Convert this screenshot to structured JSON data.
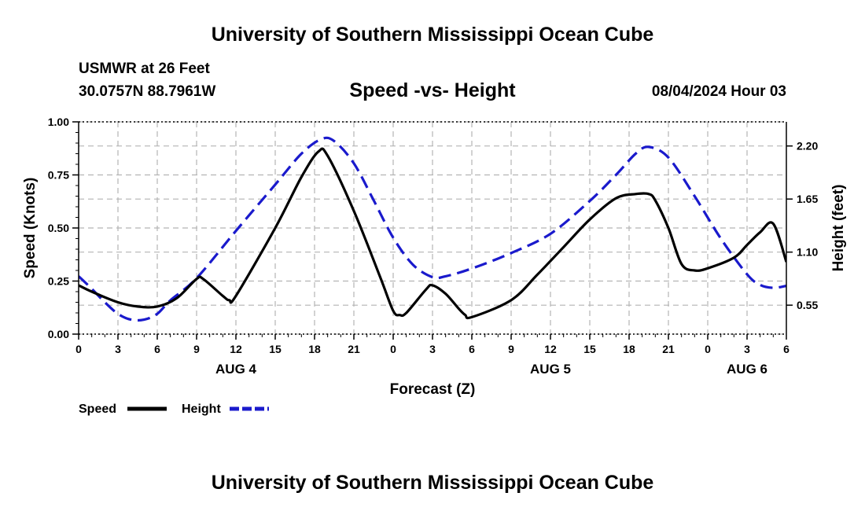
{
  "header": {
    "title": "University of Southern Mississippi Ocean Cube",
    "station": "USMWR at 26 Feet",
    "coords": "30.0757N  88.7961W",
    "subtitle": "Speed -vs- Height",
    "datetime": "08/04/2024 Hour 03"
  },
  "footer": {
    "title": "University of Southern Mississippi Ocean Cube"
  },
  "chart_data": {
    "type": "line",
    "title": "Speed -vs- Height",
    "xlabel": "Forecast (Z)",
    "ylabel_left": "Speed (Knots)",
    "ylabel_right": "Height (feet)",
    "x_range": [
      0,
      54
    ],
    "x_ticks": [
      0,
      3,
      6,
      9,
      12,
      15,
      18,
      21,
      24,
      27,
      30,
      33,
      36,
      39,
      42,
      45,
      48,
      51,
      54
    ],
    "x_tick_labels": [
      "0",
      "3",
      "6",
      "9",
      "12",
      "15",
      "18",
      "21",
      "0",
      "3",
      "6",
      "9",
      "12",
      "15",
      "18",
      "21",
      "0",
      "3",
      "6"
    ],
    "day_labels": [
      {
        "label": "AUG 4",
        "x": 12
      },
      {
        "label": "AUG 5",
        "x": 36
      },
      {
        "label": "AUG 6",
        "x": 51
      }
    ],
    "y_left": {
      "range": [
        0,
        1
      ],
      "ticks": [
        0,
        0.25,
        0.5,
        0.75,
        1
      ],
      "tick_labels": [
        "0.00",
        "0.25",
        "0.50",
        "0.75",
        "1.00"
      ]
    },
    "y_right": {
      "range": [
        0.25,
        2.45
      ],
      "ticks": [
        0.55,
        1.1,
        1.65,
        2.2
      ],
      "tick_labels": [
        "0.55",
        "1.10",
        "1.65",
        "2.20"
      ]
    },
    "grid": true,
    "series": [
      {
        "name": "Speed",
        "axis": "left",
        "color": "#000000",
        "dash": "solid",
        "x": [
          0,
          1,
          3,
          4.5,
          6,
          7.5,
          9,
          9.5,
          11,
          11.5,
          12,
          15,
          17,
          18.3,
          19,
          21,
          23,
          24,
          24.5,
          25,
          26.5,
          27,
          28,
          29,
          29.5,
          30,
          33,
          35,
          37,
          39,
          41,
          42.5,
          43.5,
          44,
          45,
          46,
          47,
          48,
          50,
          51,
          52,
          53,
          54
        ],
        "values": [
          0.23,
          0.2,
          0.15,
          0.13,
          0.13,
          0.17,
          0.26,
          0.26,
          0.18,
          0.16,
          0.18,
          0.5,
          0.74,
          0.86,
          0.84,
          0.58,
          0.27,
          0.11,
          0.09,
          0.1,
          0.21,
          0.23,
          0.19,
          0.12,
          0.09,
          0.08,
          0.16,
          0.28,
          0.41,
          0.54,
          0.64,
          0.66,
          0.66,
          0.63,
          0.5,
          0.33,
          0.3,
          0.31,
          0.36,
          0.42,
          0.48,
          0.52,
          0.34
        ]
      },
      {
        "name": "Height",
        "axis": "right",
        "color": "#1a1acc",
        "dash": "dashed",
        "x": [
          0,
          1,
          2,
          3,
          4,
          5,
          6,
          7,
          9,
          12,
          15,
          17,
          18.5,
          19.5,
          21,
          22.5,
          24,
          25.5,
          27,
          28,
          30,
          33,
          36,
          39,
          41,
          42.5,
          43.5,
          45,
          47,
          49,
          51,
          52,
          53,
          54
        ],
        "values": [
          0.85,
          0.72,
          0.58,
          0.46,
          0.4,
          0.4,
          0.46,
          0.6,
          0.83,
          1.32,
          1.8,
          2.12,
          2.27,
          2.25,
          2.02,
          1.64,
          1.25,
          0.97,
          0.84,
          0.85,
          0.93,
          1.09,
          1.29,
          1.63,
          1.9,
          2.12,
          2.19,
          2.08,
          1.68,
          1.24,
          0.87,
          0.76,
          0.73,
          0.75
        ]
      }
    ],
    "legend": {
      "placement": "bottom-left",
      "entries": [
        {
          "label": "Speed",
          "color": "#000000",
          "dash": "solid"
        },
        {
          "label": "Height",
          "color": "#1a1acc",
          "dash": "dashed"
        }
      ]
    }
  }
}
